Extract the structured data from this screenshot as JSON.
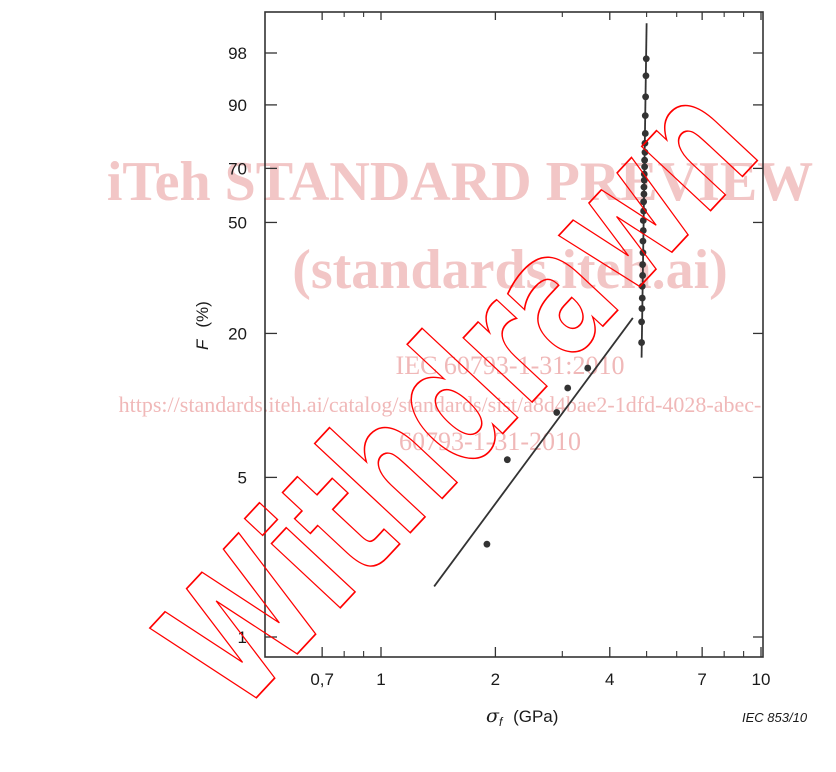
{
  "chart_data": {
    "type": "scatter",
    "x_scale": "log",
    "y_scale": "weibull-probability",
    "xlim": [
      0.55,
      10.8
    ],
    "ylim_percent": [
      0.8,
      99.6
    ],
    "x_ticks": [
      {
        "value": 0.7,
        "label": "0,7"
      },
      {
        "value": 1,
        "label": "1"
      },
      {
        "value": 2,
        "label": "2"
      },
      {
        "value": 4,
        "label": "4"
      },
      {
        "value": 7,
        "label": "7"
      },
      {
        "value": 10,
        "label": "10"
      }
    ],
    "x_minor_ticks": [
      0.8,
      0.9,
      3,
      5,
      6,
      8,
      9
    ],
    "y_ticks": [
      {
        "value": 1,
        "label": "1"
      },
      {
        "value": 5,
        "label": "5"
      },
      {
        "value": 20,
        "label": "20"
      },
      {
        "value": 50,
        "label": "50"
      },
      {
        "value": 70,
        "label": "70"
      },
      {
        "value": 90,
        "label": "90"
      },
      {
        "value": 98,
        "label": "98"
      }
    ],
    "xlabel": {
      "symbol": "σ",
      "subscript": "f",
      "unit": "(GPa)"
    },
    "ylabel": {
      "symbol": "F",
      "unit": "(%)"
    },
    "series": [
      {
        "points": [
          [
            1.9,
            2.56
          ],
          [
            2.15,
            5.96
          ],
          [
            2.9,
            9.48
          ],
          [
            3.1,
            12.0
          ],
          [
            3.5,
            14.5
          ],
          [
            4.85,
            18.4
          ],
          [
            4.85,
            22.2
          ],
          [
            4.86,
            25.0
          ],
          [
            4.87,
            27.4
          ],
          [
            4.87,
            30.3
          ],
          [
            4.88,
            33.2
          ],
          [
            4.88,
            36.3
          ],
          [
            4.89,
            39.9
          ],
          [
            4.89,
            43.6
          ],
          [
            4.9,
            47.2
          ],
          [
            4.9,
            50.7
          ],
          [
            4.91,
            54.1
          ],
          [
            4.91,
            57.5
          ],
          [
            4.92,
            60.4
          ],
          [
            4.92,
            63.0
          ],
          [
            4.93,
            65.6
          ],
          [
            4.93,
            67.9
          ],
          [
            4.94,
            70.6
          ],
          [
            4.94,
            73.0
          ],
          [
            4.95,
            75.8
          ],
          [
            4.95,
            78.9
          ],
          [
            4.96,
            82.1
          ],
          [
            4.96,
            87.3
          ],
          [
            4.97,
            91.8
          ],
          [
            4.98,
            95.5
          ],
          [
            4.99,
            97.5
          ]
        ],
        "color": "#333333"
      }
    ],
    "fit_lines": [
      {
        "from": [
          1.38,
          1.67
        ],
        "to": [
          4.6,
          23.0
        ],
        "color": "#333333"
      },
      {
        "from": [
          4.85,
          16.0
        ],
        "to": [
          5.0,
          99.5
        ],
        "color": "#333333"
      }
    ],
    "grid": false
  },
  "figure_ref": "IEC  853/10",
  "watermark": {
    "line1": "iTeh STANDARD PREVIEW",
    "line2": "(standards.iteh.ai)",
    "line3": "IEC 60793-1-31:2010",
    "line4": "https://standards.iteh.ai/catalog/standards/sist/a8d4bae2-1dfd-4028-abec-",
    "line5": "60793-1-31-2010",
    "stamp": "Withdrawn",
    "stamp_color": "#ff0000",
    "watermark_color": "#f2c6c6"
  }
}
